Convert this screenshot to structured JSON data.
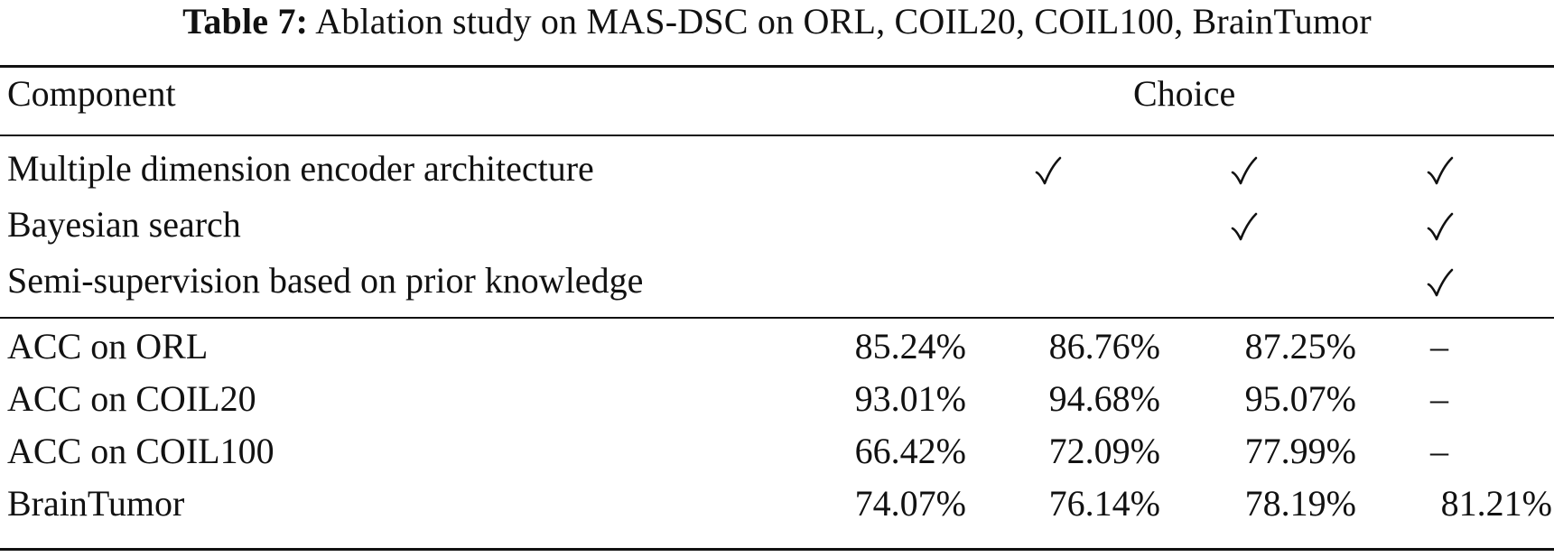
{
  "caption": {
    "label": "Table 7:",
    "text": "Ablation study on MAS-DSC on ORL, COIL20, COIL100, BrainTumor"
  },
  "header": {
    "component": "Component",
    "choice": "Choice"
  },
  "components": [
    {
      "name": "Multiple dimension encoder architecture",
      "checks": [
        false,
        true,
        true,
        true
      ]
    },
    {
      "name": "Bayesian search",
      "checks": [
        false,
        false,
        true,
        true
      ]
    },
    {
      "name": "Semi-supervision based on prior knowledge",
      "checks": [
        false,
        false,
        false,
        true
      ]
    }
  ],
  "results": [
    {
      "name": "ACC on ORL",
      "values": [
        "85.24%",
        "86.76%",
        "87.25%",
        "–"
      ]
    },
    {
      "name": "ACC on COIL20",
      "values": [
        "93.01%",
        "94.68%",
        "95.07%",
        "–"
      ]
    },
    {
      "name": "ACC on COIL100",
      "values": [
        "66.42%",
        "72.09%",
        "77.99%",
        "–"
      ]
    },
    {
      "name": "BrainTumor",
      "values": [
        "74.07%",
        "76.14%",
        "78.19%",
        "81.21%"
      ]
    }
  ],
  "icons": {
    "check": "check-mark-icon"
  }
}
